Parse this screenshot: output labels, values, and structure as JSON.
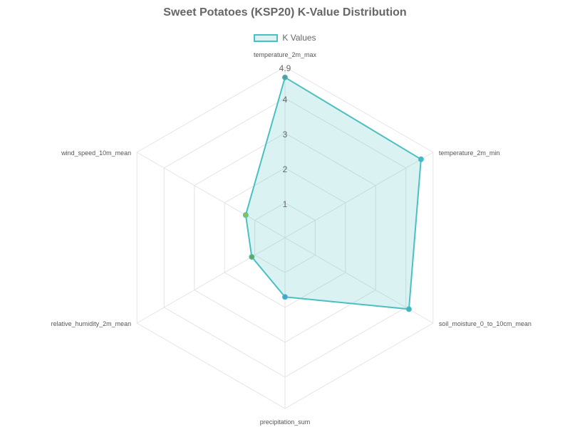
{
  "chart_data": {
    "type": "radar",
    "title": "Sweet Potatoes (KSP20) K-Value Distribution",
    "legend_position": "top",
    "grid": true,
    "categories": [
      "temperature_2m_max",
      "temperature_2m_min",
      "soil_moisture_0_to_10cm_mean",
      "precipitation_sum",
      "relative_humidity_2m_mean",
      "wind_speed_10m_mean"
    ],
    "series": [
      {
        "name": "K Values",
        "values": [
          4.6,
          4.5,
          4.1,
          1.7,
          1.1,
          1.3
        ],
        "border_color": "#4bc0c0",
        "fill_color": "rgba(75,192,192,0.2)",
        "point_colors": [
          "#5b9aa0",
          "#45b7d1",
          "#3fb4c0",
          "#4f9fd0",
          "#6aa84f",
          "#8bc34a"
        ]
      }
    ],
    "r_range": [
      0,
      4.9
    ],
    "ticks": [
      "1",
      "2",
      "3",
      "4",
      "4.9"
    ],
    "tick_values": [
      1,
      2,
      3,
      4,
      4.9
    ]
  }
}
